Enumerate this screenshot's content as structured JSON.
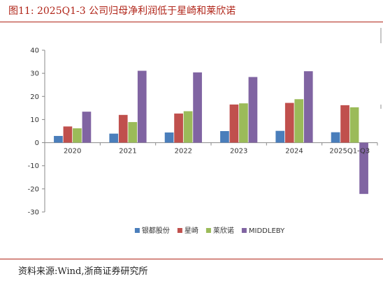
{
  "figure": {
    "title": "图11:  2025Q1-3 公司归母净利润低于星崎和莱欣诺",
    "source": "资料来源:Wind,浙商证券研究所"
  },
  "colors": {
    "accent": "#b02418",
    "series": [
      "#4a7ebb",
      "#c0504d",
      "#9bbb59",
      "#8064a2"
    ],
    "axis": "#888888",
    "text": "#333333"
  },
  "chart_data": {
    "type": "bar",
    "categories": [
      "2020",
      "2021",
      "2022",
      "2023",
      "2024",
      "2025Q1-Q3"
    ],
    "series": [
      {
        "name": "银都股份",
        "values": [
          2.9,
          3.9,
          4.4,
          5.0,
          5.1,
          4.5
        ]
      },
      {
        "name": "星崎",
        "values": [
          7.0,
          12.0,
          12.6,
          16.5,
          17.2,
          16.2
        ]
      },
      {
        "name": "莱欣诺",
        "values": [
          6.2,
          8.9,
          13.6,
          17.0,
          18.8,
          15.3
        ]
      },
      {
        "name": "MIDDLEBY",
        "values": [
          13.4,
          31.1,
          30.4,
          28.4,
          30.9,
          -22.2
        ]
      }
    ],
    "ylim": [
      -30,
      40
    ],
    "yticks": [
      -30,
      -20,
      -10,
      0,
      10,
      20,
      30,
      40
    ],
    "title": "",
    "xlabel": "",
    "ylabel": "",
    "legend_position": "bottom",
    "grid": false
  }
}
